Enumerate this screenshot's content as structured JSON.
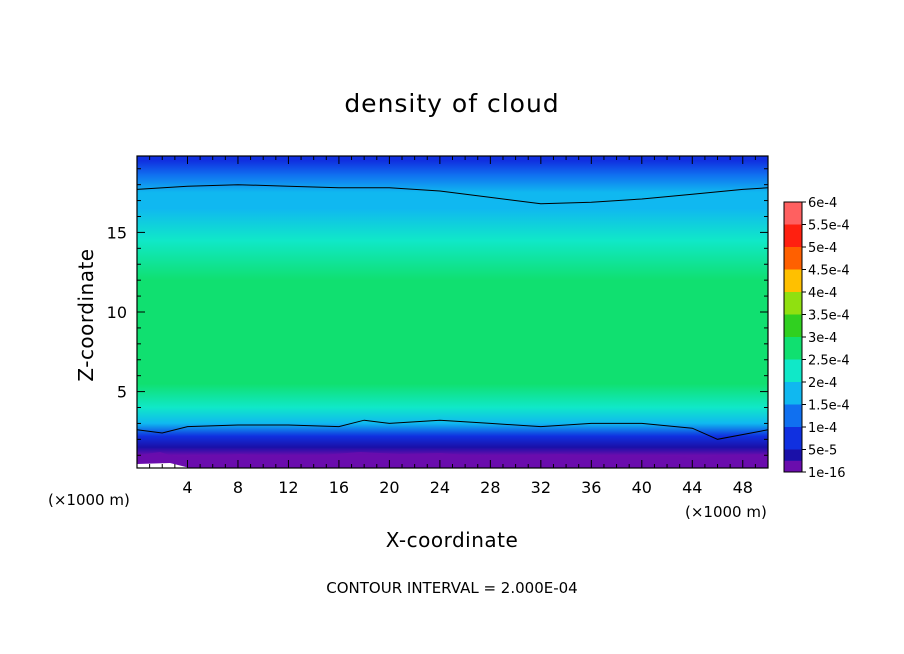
{
  "chart_data": {
    "type": "heatmap",
    "title": "density of cloud",
    "xlabel": "X-coordinate",
    "ylabel": "Z-coordinate",
    "x_unit_left": "(×1000 m)",
    "x_unit_right": "(×1000 m)",
    "xlim": [
      0,
      50
    ],
    "ylim": [
      0.2,
      19.8
    ],
    "x_ticks": [
      4,
      8,
      12,
      16,
      20,
      24,
      28,
      32,
      36,
      40,
      44,
      48
    ],
    "y_ticks": [
      5,
      10,
      15
    ],
    "colorbar": {
      "labels": [
        "1e-16",
        "5e-5",
        "1e-4",
        "1.5e-4",
        "2e-4",
        "2.5e-4",
        "3e-4",
        "3.5e-4",
        "4e-4",
        "4.5e-4",
        "5e-4",
        "5.5e-4",
        "6e-4"
      ],
      "values": [
        1e-16,
        5e-05,
        0.0001,
        0.00015,
        0.0002,
        0.00025,
        0.0003,
        0.00035,
        0.0004,
        0.00045,
        0.0005,
        0.00055,
        0.0006
      ],
      "colors": [
        "#6a0dad",
        "#1a10a8",
        "#1030e0",
        "#1070f0",
        "#10b8f0",
        "#10e8c8",
        "#10e070",
        "#30d020",
        "#90e010",
        "#ffc000",
        "#ff6000",
        "#ff2010",
        "#ff6060",
        "#ffb0b0"
      ]
    },
    "contour_interval": "CONTOUR INTERVAL = 2.000E-04",
    "vertical_profile": [
      {
        "z": 0.2,
        "value": 0.0
      },
      {
        "z": 1.0,
        "value": 2e-05
      },
      {
        "z": 1.5,
        "value": 8e-05
      },
      {
        "z": 2.2,
        "value": 0.00014
      },
      {
        "z": 3.0,
        "value": 0.0002
      },
      {
        "z": 4.0,
        "value": 0.00026
      },
      {
        "z": 5.5,
        "value": 0.0003
      },
      {
        "z": 8.5,
        "value": 0.00034
      },
      {
        "z": 12.0,
        "value": 0.00031
      },
      {
        "z": 14.5,
        "value": 0.00028
      },
      {
        "z": 16.5,
        "value": 0.00024
      },
      {
        "z": 17.5,
        "value": 0.0002
      },
      {
        "z": 18.6,
        "value": 0.00016
      },
      {
        "z": 19.5,
        "value": 0.00011
      },
      {
        "z": 19.8,
        "value": 0.0001
      }
    ],
    "contour_lines": [
      {
        "level": 0.0002,
        "x": [
          0,
          2,
          4,
          8,
          12,
          16,
          18,
          20,
          24,
          28,
          32,
          36,
          40,
          44,
          46,
          50
        ],
        "z": [
          2.6,
          2.4,
          2.8,
          2.9,
          2.9,
          2.8,
          3.2,
          3.0,
          3.2,
          3.0,
          2.8,
          3.0,
          3.0,
          2.7,
          2.0,
          2.6
        ]
      },
      {
        "level": 0.0002,
        "x": [
          0,
          4,
          8,
          12,
          16,
          20,
          24,
          28,
          32,
          36,
          40,
          44,
          48,
          50
        ],
        "z": [
          17.7,
          17.9,
          18.0,
          17.9,
          17.8,
          17.8,
          17.6,
          17.2,
          16.8,
          16.9,
          17.1,
          17.4,
          17.7,
          17.8
        ]
      }
    ],
    "grid": false
  }
}
